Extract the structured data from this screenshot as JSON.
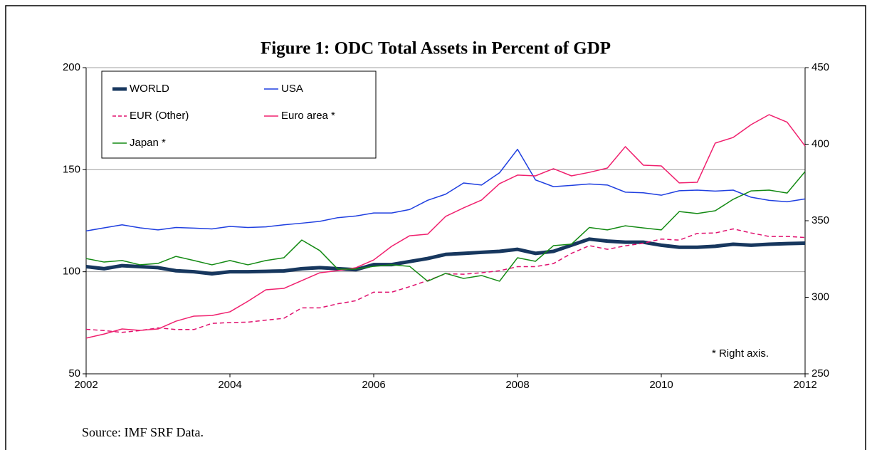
{
  "chart_data": {
    "type": "line",
    "title": "Figure 1: ODC Total Assets in Percent of GDP",
    "annotation": "* Right axis.",
    "source": "Source: IMF SRF Data.",
    "x": [
      2002,
      2002.25,
      2002.5,
      2002.75,
      2003,
      2003.25,
      2003.5,
      2003.75,
      2004,
      2004.25,
      2004.5,
      2004.75,
      2005,
      2005.25,
      2005.5,
      2005.75,
      2006,
      2006.25,
      2006.5,
      2006.75,
      2007,
      2007.25,
      2007.5,
      2007.75,
      2008,
      2008.25,
      2008.5,
      2008.75,
      2009,
      2009.25,
      2009.5,
      2009.75,
      2010,
      2010.25,
      2010.5,
      2010.75,
      2011,
      2011.25,
      2011.5,
      2011.75,
      2012
    ],
    "xlim": [
      2002,
      2012
    ],
    "xticks": [
      2002,
      2004,
      2006,
      2008,
      2010,
      2012
    ],
    "ylim": [
      50,
      200
    ],
    "yticks": [
      50,
      100,
      150,
      200
    ],
    "y2lim": [
      250,
      450
    ],
    "y2ticks": [
      250,
      300,
      350,
      400,
      450
    ],
    "grid": true,
    "legend": "upper left",
    "series": [
      {
        "name": "WORLD",
        "color": "#17375e",
        "width": 5,
        "dash": false,
        "values": [
          102.5,
          101.5,
          103,
          102.5,
          102,
          100.5,
          100,
          99,
          100,
          100,
          100.2,
          100.4,
          101.5,
          102,
          101.5,
          101,
          103.5,
          103.5,
          105,
          106.5,
          108.5,
          109,
          109.5,
          110,
          111,
          109,
          110,
          113,
          116,
          115,
          114.5,
          114.5,
          113,
          112,
          112,
          112.5,
          113.5,
          113,
          113.5,
          113.8,
          114
        ]
      },
      {
        "name": "USA",
        "color": "#1f3fe0",
        "width": 1.5,
        "dash": false,
        "values": [
          120,
          121.5,
          123,
          121.5,
          120.5,
          121.7,
          121.4,
          121,
          122.2,
          121.7,
          122,
          123,
          123.8,
          124.7,
          126.5,
          127.3,
          128.8,
          128.8,
          130.5,
          135,
          138,
          143.5,
          142.5,
          148.5,
          160,
          145,
          141.7,
          142.3,
          143,
          142.5,
          139,
          138.7,
          137.5,
          139.7,
          140,
          139.5,
          140,
          136.5,
          135,
          134.3,
          135.7
        ]
      },
      {
        "name": "EUR (Other)",
        "color": "#e0106e",
        "width": 1.5,
        "dash": true,
        "values": [
          71.8,
          71.2,
          70.3,
          71.2,
          72.5,
          71.7,
          71.7,
          74.7,
          75.1,
          75.3,
          76.3,
          77.2,
          82.3,
          82.3,
          84.3,
          85.8,
          90,
          90,
          92.7,
          95.7,
          99,
          98.8,
          99.5,
          100.5,
          102.5,
          102.5,
          104,
          109,
          112.8,
          111,
          112.7,
          114,
          116,
          115.5,
          118.8,
          119,
          121,
          119,
          117.3,
          117.3,
          116.8
        ]
      },
      {
        "name": "Euro area *",
        "color": "#f0206e",
        "width": 1.5,
        "dash": false,
        "axis": "y2",
        "values": [
          273.3,
          276,
          279.3,
          278.4,
          279.3,
          284.4,
          287.7,
          288.1,
          290.5,
          297.4,
          304.9,
          305.8,
          310.9,
          316,
          317.4,
          319.3,
          324.4,
          333.3,
          340.2,
          341.2,
          352.8,
          358.4,
          363.5,
          374.2,
          379.8,
          379.3,
          384,
          379.3,
          381.6,
          384.4,
          398.4,
          386.3,
          385.8,
          374.7,
          375.1,
          400.7,
          404.4,
          412.8,
          419.3,
          414.4,
          398.8
        ]
      },
      {
        "name": "Japan *",
        "color": "#138a13",
        "width": 1.5,
        "dash": false,
        "axis": "y2",
        "values": [
          325.3,
          323,
          324,
          321.2,
          322.1,
          326.7,
          324,
          321.2,
          324,
          321.2,
          324,
          325.8,
          337.4,
          330.5,
          318.4,
          318.4,
          320.2,
          321.2,
          320.2,
          310.5,
          315.6,
          312.3,
          314.2,
          310.5,
          325.8,
          323.5,
          333.7,
          334.7,
          345.6,
          344,
          346.7,
          345.3,
          344,
          356,
          354.7,
          356.5,
          364,
          369.5,
          370,
          368.1,
          382.1
        ]
      }
    ]
  }
}
